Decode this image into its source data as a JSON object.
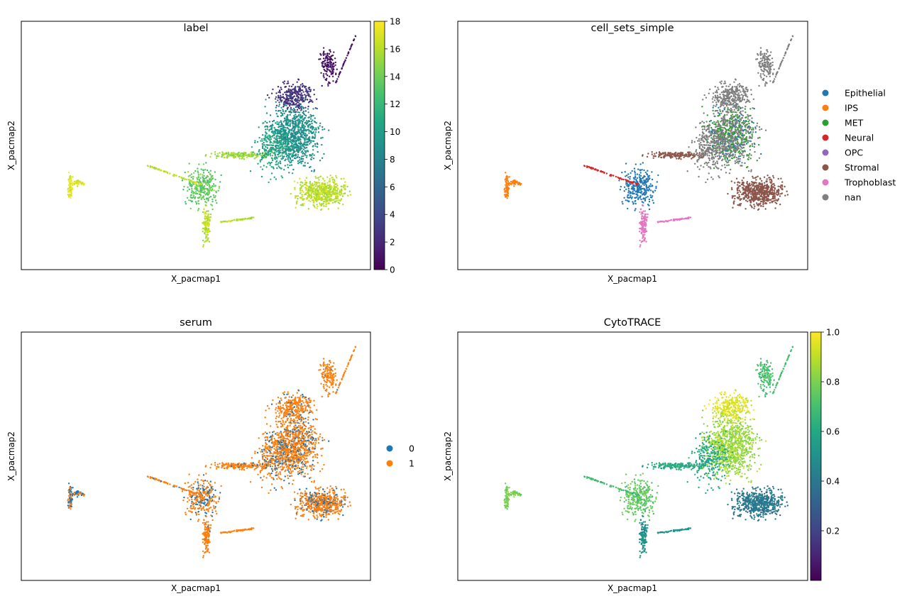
{
  "chart_data": [
    {
      "type": "scatter",
      "title": "label",
      "xlabel": "X_pacmap1",
      "ylabel": "X_pacmap2",
      "color_encoding": "continuous",
      "colormap": "viridis",
      "colorbar": {
        "range": [
          0,
          18
        ],
        "ticks": [
          "0",
          "2",
          "4",
          "6",
          "8",
          "10",
          "12",
          "14",
          "16",
          "18"
        ]
      },
      "grid": false
    },
    {
      "type": "scatter",
      "title": "cell_sets_simple",
      "xlabel": "X_pacmap1",
      "ylabel": "X_pacmap2",
      "color_encoding": "categorical",
      "legend_placement": "right",
      "legend": [
        {
          "name": "Epithelial",
          "color": "#1f77b4"
        },
        {
          "name": "IPS",
          "color": "#ff7f0e"
        },
        {
          "name": "MET",
          "color": "#2ca02c"
        },
        {
          "name": "Neural",
          "color": "#d62728"
        },
        {
          "name": "OPC",
          "color": "#9467bd"
        },
        {
          "name": "Stromal",
          "color": "#8c564b"
        },
        {
          "name": "Trophoblast",
          "color": "#e377c2"
        },
        {
          "name": "nan",
          "color": "#7f7f7f"
        }
      ],
      "grid": false
    },
    {
      "type": "scatter",
      "title": "serum",
      "xlabel": "X_pacmap1",
      "ylabel": "X_pacmap2",
      "color_encoding": "categorical",
      "legend_placement": "right",
      "legend": [
        {
          "name": "0",
          "color": "#1f77b4"
        },
        {
          "name": "1",
          "color": "#ff7f0e"
        }
      ],
      "grid": false
    },
    {
      "type": "scatter",
      "title": "CytoTRACE",
      "xlabel": "X_pacmap1",
      "ylabel": "X_pacmap2",
      "color_encoding": "continuous",
      "colormap": "viridis",
      "colorbar": {
        "range": [
          0,
          1
        ],
        "ticks": [
          "0.2",
          "0.4",
          "0.6",
          "0.8",
          "1.0"
        ]
      },
      "grid": false
    }
  ]
}
